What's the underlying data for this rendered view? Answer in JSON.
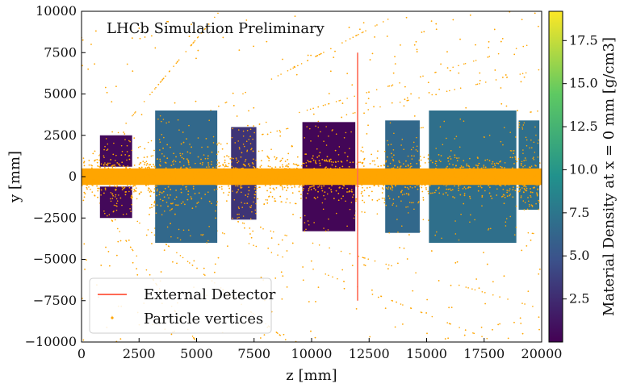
{
  "chart_data": {
    "type": "scatter",
    "annotation": "LHCb Simulation Preliminary",
    "xlabel": "z [mm]",
    "ylabel": "y [mm]",
    "xlim": [
      0,
      20000
    ],
    "ylim": [
      -10000,
      10000
    ],
    "x_ticks": [
      0,
      2500,
      5000,
      7500,
      10000,
      12500,
      15000,
      17500,
      20000
    ],
    "y_ticks": [
      -10000,
      -7500,
      -5000,
      -2500,
      0,
      2500,
      5000,
      7500,
      10000
    ],
    "x_tick_labels": [
      "0",
      "2500",
      "5000",
      "7500",
      "10000",
      "12500",
      "15000",
      "17500",
      "20000"
    ],
    "y_tick_labels": [
      "−10000",
      "−7500",
      "−5000",
      "−2500",
      "0",
      "2500",
      "5000",
      "7500",
      "10000"
    ],
    "legend": {
      "placement": "lower-left",
      "entries": [
        {
          "label": "External Detector",
          "color": "#ff6a55",
          "marker": "line"
        },
        {
          "label": "Particle vertices",
          "color": "#ffa500",
          "marker": "dot"
        }
      ]
    },
    "external_detector": {
      "z": 12000,
      "y_min": -7500,
      "y_max": 7500,
      "color": "#ff6a55"
    },
    "colorbar": {
      "label": "Material Density at x = 0 mm [g/cm3]",
      "min": 0,
      "max": 19.2,
      "ticks": [
        2.5,
        5.0,
        7.5,
        10.0,
        12.5,
        15.0,
        17.5
      ],
      "tick_labels": [
        "2.5",
        "5.0",
        "7.5",
        "10.0",
        "12.5",
        "15.0",
        "17.5"
      ],
      "colormap": "viridis",
      "stops": [
        "#440154",
        "#3b528b",
        "#21918c",
        "#5ec962",
        "#fde725"
      ]
    },
    "detector_regions": [
      {
        "name": "velo-upper",
        "z": [
          800,
          2200
        ],
        "y": [
          600,
          2500
        ],
        "density": 0.5
      },
      {
        "name": "velo-lower",
        "z": [
          800,
          2200
        ],
        "y": [
          -2500,
          -600
        ],
        "density": 0.5
      },
      {
        "name": "rich1-upper",
        "z": [
          3200,
          5900
        ],
        "y": [
          400,
          4000
        ],
        "density": 6.5
      },
      {
        "name": "rich1-lower",
        "z": [
          3200,
          5900
        ],
        "y": [
          -4000,
          -400
        ],
        "density": 6.5
      },
      {
        "name": "ttracker-upper",
        "z": [
          6500,
          7600
        ],
        "y": [
          400,
          3000
        ],
        "density": 3.0
      },
      {
        "name": "ttracker-lower",
        "z": [
          6500,
          7600
        ],
        "y": [
          -2600,
          -400
        ],
        "density": 3.0
      },
      {
        "name": "magnet-upper",
        "z": [
          9600,
          11900
        ],
        "y": [
          300,
          3300
        ],
        "density": 0.3
      },
      {
        "name": "magnet-lower",
        "z": [
          9600,
          11900
        ],
        "y": [
          -3300,
          -300
        ],
        "density": 0.3
      },
      {
        "name": "rich2-upper",
        "z": [
          13200,
          14700
        ],
        "y": [
          300,
          3400
        ],
        "density": 6.5
      },
      {
        "name": "rich2-lower",
        "z": [
          13200,
          14700
        ],
        "y": [
          -3400,
          -300
        ],
        "density": 6.5
      },
      {
        "name": "calo-upper",
        "z": [
          15100,
          18900
        ],
        "y": [
          300,
          4000
        ],
        "density": 7.0
      },
      {
        "name": "calo-lower",
        "z": [
          15100,
          18900
        ],
        "y": [
          -4000,
          -300
        ],
        "density": 7.0
      },
      {
        "name": "muon-upper",
        "z": [
          19000,
          19900
        ],
        "y": [
          400,
          3400
        ],
        "density": 7.0
      },
      {
        "name": "muon-lower",
        "z": [
          19000,
          19900
        ],
        "y": [
          -2000,
          -400
        ],
        "density": 7.0
      }
    ],
    "beam_pipe": {
      "z": [
        0,
        20000
      ],
      "y": [
        -500,
        500
      ],
      "color": "#ffa500"
    }
  }
}
